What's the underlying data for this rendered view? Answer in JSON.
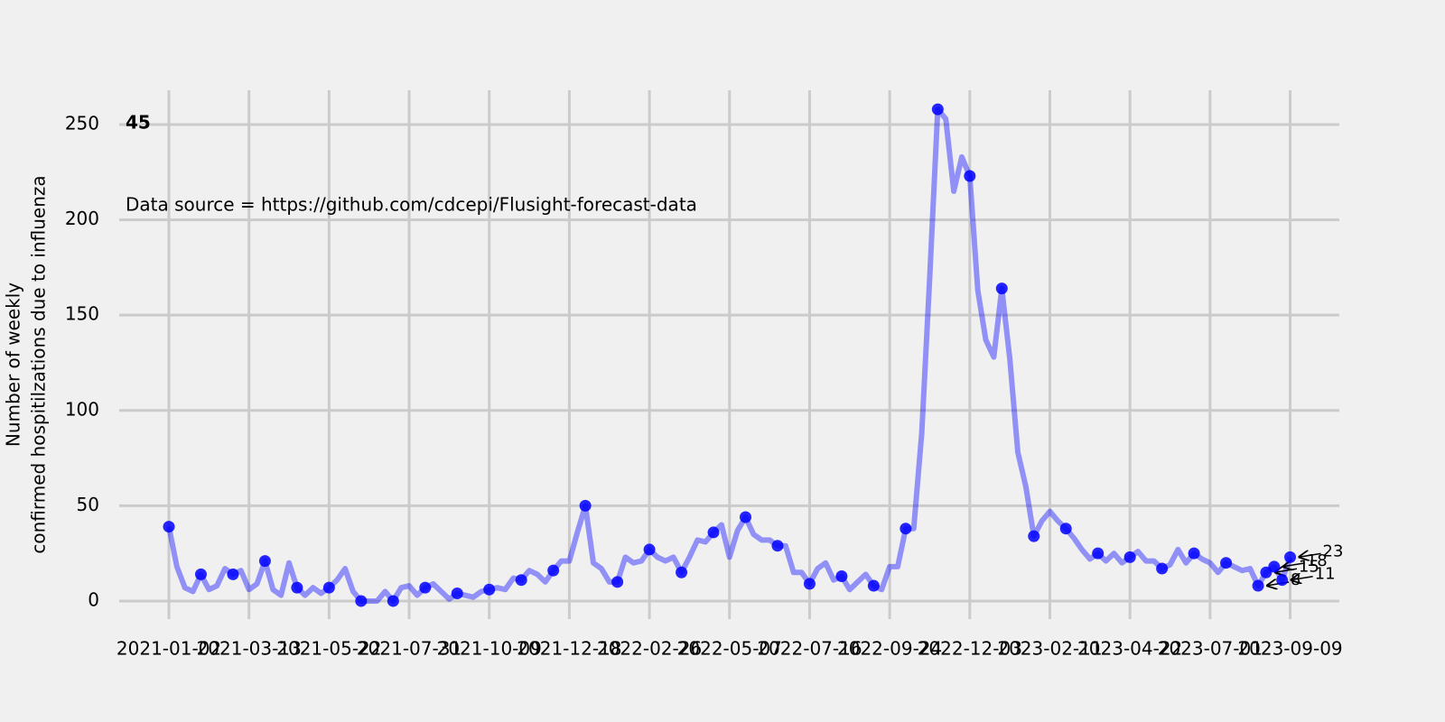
{
  "chart_data": {
    "type": "line",
    "title": "45",
    "annotation": "Data source = https://github.com/cdcepi/Flusight-forecast-data",
    "ylabel": [
      "Number of weekly",
      "confirmed hospitilzations due to influenza"
    ],
    "grid": true,
    "xlim": [
      "2020-11-18",
      "2023-10-22"
    ],
    "ylim": [
      -9.5,
      268
    ],
    "yticks": [
      0,
      50,
      100,
      150,
      200,
      250
    ],
    "xticks": [
      "2021-01-02",
      "2021-03-13",
      "2021-05-22",
      "2021-07-31",
      "2021-10-09",
      "2021-12-18",
      "2022-02-26",
      "2022-05-07",
      "2022-07-16",
      "2022-09-24",
      "2022-12-03",
      "2023-02-11",
      "2023-04-22",
      "2023-07-01",
      "2023-09-09"
    ],
    "x": [
      "2021-01-02",
      "2021-01-09",
      "2021-01-16",
      "2021-01-23",
      "2021-01-30",
      "2021-02-06",
      "2021-02-13",
      "2021-02-20",
      "2021-02-27",
      "2021-03-06",
      "2021-03-13",
      "2021-03-20",
      "2021-03-27",
      "2021-04-03",
      "2021-04-10",
      "2021-04-17",
      "2021-04-24",
      "2021-05-01",
      "2021-05-08",
      "2021-05-15",
      "2021-05-22",
      "2021-05-29",
      "2021-06-05",
      "2021-06-12",
      "2021-06-19",
      "2021-06-26",
      "2021-07-03",
      "2021-07-10",
      "2021-07-17",
      "2021-07-24",
      "2021-07-31",
      "2021-08-07",
      "2021-08-14",
      "2021-08-21",
      "2021-08-28",
      "2021-09-04",
      "2021-09-11",
      "2021-09-18",
      "2021-09-25",
      "2021-10-02",
      "2021-10-09",
      "2021-10-16",
      "2021-10-23",
      "2021-10-30",
      "2021-11-06",
      "2021-11-13",
      "2021-11-20",
      "2021-11-27",
      "2021-12-04",
      "2021-12-11",
      "2021-12-18",
      "2021-12-25",
      "2022-01-01",
      "2022-01-08",
      "2022-01-15",
      "2022-01-22",
      "2022-01-29",
      "2022-02-05",
      "2022-02-12",
      "2022-02-19",
      "2022-02-26",
      "2022-03-05",
      "2022-03-12",
      "2022-03-19",
      "2022-03-26",
      "2022-04-02",
      "2022-04-09",
      "2022-04-16",
      "2022-04-23",
      "2022-04-30",
      "2022-05-07",
      "2022-05-14",
      "2022-05-21",
      "2022-05-28",
      "2022-06-04",
      "2022-06-11",
      "2022-06-18",
      "2022-06-25",
      "2022-07-02",
      "2022-07-09",
      "2022-07-16",
      "2022-07-23",
      "2022-07-30",
      "2022-08-06",
      "2022-08-13",
      "2022-08-20",
      "2022-08-27",
      "2022-09-03",
      "2022-09-10",
      "2022-09-17",
      "2022-09-24",
      "2022-10-01",
      "2022-10-08",
      "2022-10-15",
      "2022-10-22",
      "2022-10-29",
      "2022-11-05",
      "2022-11-12",
      "2022-11-19",
      "2022-11-26",
      "2022-12-03",
      "2022-12-10",
      "2022-12-17",
      "2022-12-24",
      "2022-12-31",
      "2023-01-07",
      "2023-01-14",
      "2023-01-21",
      "2023-01-28",
      "2023-02-04",
      "2023-02-11",
      "2023-02-18",
      "2023-02-25",
      "2023-03-04",
      "2023-03-11",
      "2023-03-18",
      "2023-03-25",
      "2023-04-01",
      "2023-04-08",
      "2023-04-15",
      "2023-04-22",
      "2023-04-29",
      "2023-05-06",
      "2023-05-13",
      "2023-05-20",
      "2023-05-27",
      "2023-06-03",
      "2023-06-10",
      "2023-06-17",
      "2023-06-24",
      "2023-07-01",
      "2023-07-08",
      "2023-07-15",
      "2023-07-22",
      "2023-07-29",
      "2023-08-05",
      "2023-08-12",
      "2023-08-19",
      "2023-08-26",
      "2023-09-02",
      "2023-09-09"
    ],
    "series": [
      {
        "color": "blue",
        "values": [
          39,
          18,
          7,
          5,
          14,
          6,
          8,
          17,
          14,
          16,
          6,
          9,
          21,
          6,
          3,
          20,
          7,
          3,
          7,
          4,
          7,
          11,
          17,
          5,
          0,
          0,
          0,
          5,
          0,
          7,
          8,
          3,
          7,
          9,
          5,
          1,
          4,
          3,
          2,
          5,
          6,
          7,
          6,
          12,
          11,
          16,
          14,
          10,
          16,
          21,
          21,
          36,
          50,
          20,
          17,
          10,
          10,
          23,
          20,
          21,
          27,
          23,
          21,
          23,
          15,
          23,
          32,
          31,
          36,
          40,
          23,
          37,
          44,
          35,
          32,
          32,
          29,
          29,
          15,
          15,
          9,
          17,
          20,
          11,
          13,
          6,
          10,
          14,
          8,
          6,
          18,
          18,
          38,
          38,
          88,
          170,
          258,
          253,
          215,
          233,
          223,
          163,
          137,
          128,
          164,
          127,
          78,
          60,
          34,
          42,
          47,
          42,
          38,
          33,
          27,
          22,
          25,
          21,
          25,
          20,
          23,
          26,
          21,
          21,
          17,
          19,
          27,
          20,
          25,
          22,
          20,
          15,
          20,
          18,
          16,
          17,
          8,
          15,
          18,
          11,
          23
        ],
        "value_labels": [
          null,
          null,
          null,
          null,
          null,
          null,
          null,
          null,
          null,
          null,
          null,
          null,
          null,
          null,
          null,
          null,
          null,
          null,
          null,
          null,
          null,
          null,
          null,
          null,
          null,
          null,
          null,
          null,
          null,
          null,
          null,
          null,
          null,
          null,
          null,
          null,
          null,
          null,
          null,
          null,
          null,
          null,
          null,
          null,
          null,
          null,
          null,
          null,
          null,
          null,
          null,
          null,
          null,
          null,
          null,
          null,
          null,
          null,
          null,
          null,
          null,
          null,
          null,
          null,
          null,
          null,
          null,
          null,
          null,
          null,
          null,
          null,
          null,
          null,
          null,
          null,
          null,
          null,
          null,
          null,
          null,
          null,
          null,
          null,
          null,
          null,
          null,
          null,
          null,
          null,
          null,
          null,
          null,
          null,
          null,
          null,
          null,
          null,
          null,
          null,
          null,
          null,
          null,
          null,
          null,
          null,
          null,
          null,
          null,
          null,
          null,
          null,
          null,
          null,
          null,
          null,
          null,
          null,
          null,
          null,
          null,
          null,
          null,
          null,
          null,
          null,
          null,
          null,
          null,
          null,
          null,
          null,
          null,
          null,
          null,
          null,
          "8",
          "15",
          "18",
          "11",
          "23"
        ]
      }
    ]
  }
}
